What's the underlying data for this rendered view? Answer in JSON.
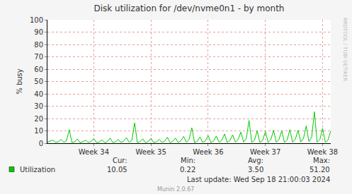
{
  "chart_data": {
    "type": "line",
    "title": "Disk utilization for /dev/nvme0n1 - by month",
    "y_label": "% busy",
    "categories": [
      null,
      null,
      null,
      null,
      null,
      null,
      null,
      null,
      null,
      null,
      null,
      null,
      null,
      null,
      null,
      null,
      null,
      "Week 34",
      null,
      null,
      null,
      null,
      null,
      null,
      null,
      null,
      null,
      null,
      null,
      null,
      null,
      null,
      null,
      null,
      null,
      null,
      null,
      null,
      "Week 35",
      null,
      null,
      null,
      null,
      null,
      null,
      null,
      null,
      null,
      null,
      null,
      null,
      null,
      null,
      null,
      null,
      null,
      null,
      null,
      null,
      "Week 36",
      null,
      null,
      null,
      null,
      null,
      null,
      null,
      null,
      null,
      null,
      null,
      null,
      null,
      null,
      null,
      null,
      null,
      null,
      null,
      null,
      "Week 37",
      null,
      null,
      null,
      null,
      null,
      null,
      null,
      null,
      null,
      null,
      null,
      null,
      null,
      null,
      null,
      null,
      null,
      null,
      null,
      null,
      "Week 38",
      null,
      null,
      null
    ],
    "series": [
      {
        "name": "Utilization",
        "color": "#00cc00",
        "values": [
          0.8,
          1.5,
          2.5,
          0.6,
          1.2,
          3.0,
          0.8,
          2.0,
          11.0,
          0.5,
          1.0,
          3.5,
          0.4,
          1.2,
          2.5,
          0.6,
          1.5,
          3.8,
          0.5,
          1.0,
          2.8,
          0.4,
          1.3,
          4.2,
          0.5,
          1.2,
          3.0,
          0.6,
          1.8,
          4.5,
          0.7,
          2.5,
          16.5,
          0.5,
          1.2,
          3.5,
          0.4,
          1.3,
          4.0,
          0.5,
          1.1,
          3.2,
          0.6,
          1.5,
          4.8,
          0.5,
          1.4,
          4.2,
          0.6,
          2.0,
          5.5,
          0.8,
          3.0,
          12.5,
          0.5,
          1.5,
          5.0,
          0.6,
          2.0,
          6.2,
          0.5,
          1.8,
          5.8,
          0.7,
          2.4,
          7.5,
          0.6,
          2.2,
          6.8,
          0.8,
          3.0,
          9.0,
          1.0,
          4.0,
          18.5,
          0.7,
          2.5,
          10.0,
          0.6,
          2.2,
          9.5,
          0.7,
          2.8,
          10.5,
          0.8,
          3.0,
          10.0,
          0.7,
          2.6,
          11.0,
          0.8,
          3.2,
          10.5,
          1.0,
          4.0,
          14.0,
          1.2,
          5.0,
          25.5,
          0.8,
          3.0,
          12.0,
          0.7,
          2.5,
          10.0
        ]
      }
    ],
    "ylim": [
      0,
      100
    ],
    "yticks": [
      0,
      10,
      20,
      30,
      40,
      50,
      60,
      70,
      80,
      90,
      100
    ],
    "grid": true,
    "stats": {
      "labels": [
        "Cur:",
        "Min:",
        "Avg:",
        "Max:"
      ],
      "values": [
        10.05,
        0.22,
        3.5,
        51.2
      ],
      "value_labels": [
        "10.05",
        "0.22",
        "3.50",
        "51.20"
      ]
    },
    "last_update": "Last update: Wed Sep 18 21:00:03 2024",
    "footer": "Munin 2.0.67",
    "watermark": "RRDTOOL / TOBI OETIKER"
  }
}
